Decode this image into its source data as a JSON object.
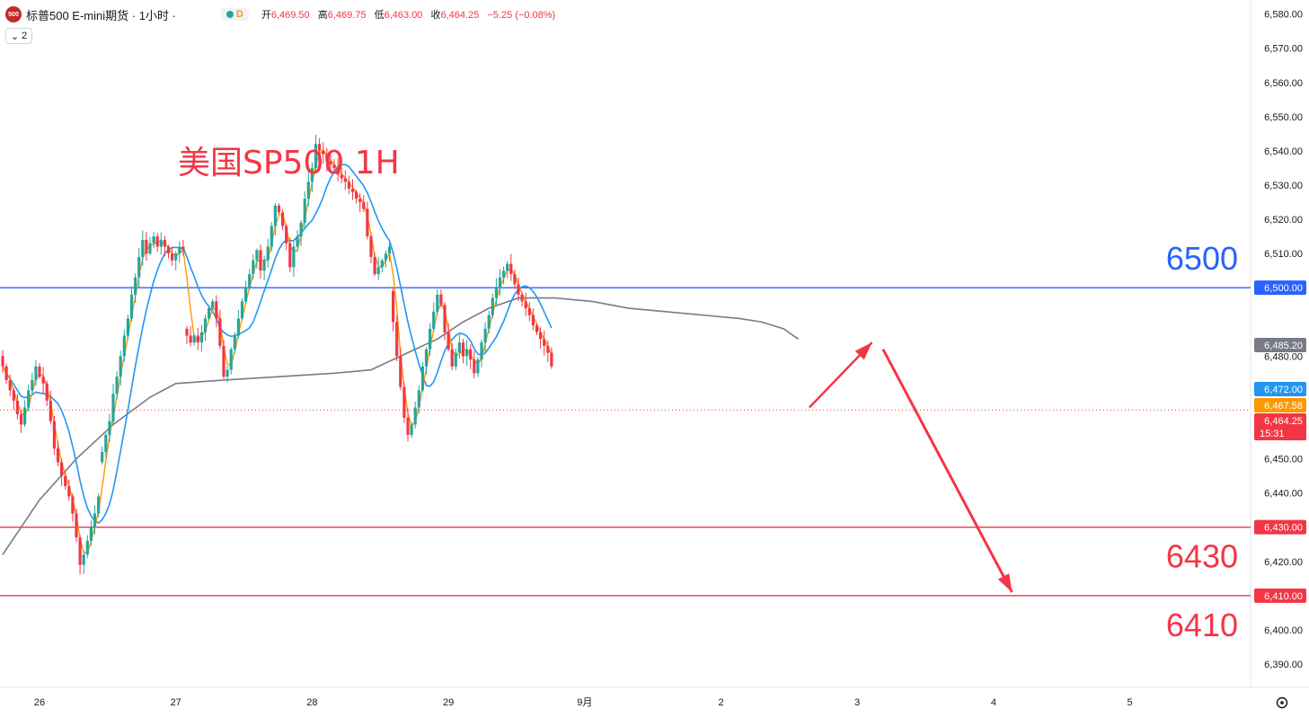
{
  "header": {
    "logo_text": "500",
    "symbol": "标普500 E-mini期货 · 1小时 ·",
    "data_mark": "D",
    "ohlc": [
      {
        "label": "开",
        "value": "6,469.50"
      },
      {
        "label": "高",
        "value": "6,469.75"
      },
      {
        "label": "低",
        "value": "6,463.00"
      },
      {
        "label": "收",
        "value": "6,464.25"
      }
    ],
    "change": "−5.25 (−0.08%)",
    "collapse_count": "2"
  },
  "colors": {
    "up": "#26a69a",
    "down": "#f23645",
    "ma_fast": "#ff9800",
    "ma_mid": "#2196f3",
    "ma_slow": "#787b86",
    "resistance_line": "#2962ff",
    "support_line": "#f23645",
    "annotation_red": "#f23645"
  },
  "chart_data": {
    "type": "candlestick",
    "title": "美国SP500 1H",
    "y_axis": {
      "range": [
        6385,
        6582
      ],
      "ticks": [
        "6,580.00",
        "6,570.00",
        "6,560.00",
        "6,550.00",
        "6,540.00",
        "6,530.00",
        "6,520.00",
        "6,510.00",
        "6,480.00",
        "6,450.00",
        "6,440.00",
        "6,420.00",
        "6,400.00",
        "6,390.00"
      ]
    },
    "x_axis": {
      "labels": [
        {
          "text": "26",
          "bar": 10
        },
        {
          "text": "27",
          "bar": 47
        },
        {
          "text": "28",
          "bar": 84
        },
        {
          "text": "29",
          "bar": 121
        },
        {
          "text": "9月",
          "bar": 158
        },
        {
          "text": "2",
          "bar": 195
        },
        {
          "text": "3",
          "bar": 232
        },
        {
          "text": "4",
          "bar": 269
        },
        {
          "text": "5",
          "bar": 306
        }
      ]
    },
    "levels": [
      {
        "value": 6500,
        "label": "6500",
        "axis_label": "6,500.00",
        "kind": "resistance"
      },
      {
        "value": 6430,
        "label": "6430",
        "axis_label": "6,430.00",
        "kind": "support"
      },
      {
        "value": 6410,
        "label": "6410",
        "axis_label": "6,410.00",
        "kind": "support"
      }
    ],
    "price_tags": [
      {
        "value": 6485.2,
        "text": "6,485.20",
        "color": "#787b86"
      },
      {
        "value": 6472.0,
        "text": "6,472.00",
        "color": "#2196f3"
      },
      {
        "value": 6467.58,
        "text": "6,467.58",
        "color": "#ff9800"
      },
      {
        "value": 6464.25,
        "text": "6,464.25",
        "sub": "15:31",
        "color": "#f23645"
      }
    ],
    "last_price": 6464.25,
    "ma_slow": [
      [
        0,
        6422
      ],
      [
        10,
        6438
      ],
      [
        20,
        6450
      ],
      [
        30,
        6460
      ],
      [
        40,
        6468
      ],
      [
        47,
        6472
      ],
      [
        60,
        6473
      ],
      [
        75,
        6474
      ],
      [
        90,
        6475
      ],
      [
        100,
        6476
      ],
      [
        110,
        6481
      ],
      [
        118,
        6485
      ],
      [
        125,
        6490
      ],
      [
        132,
        6494
      ],
      [
        140,
        6497
      ],
      [
        150,
        6497
      ],
      [
        160,
        6496
      ],
      [
        170,
        6494
      ],
      [
        180,
        6493
      ],
      [
        190,
        6492
      ],
      [
        200,
        6491
      ],
      [
        206,
        6490
      ],
      [
        212,
        6488
      ],
      [
        216,
        6485
      ]
    ],
    "forecast_path": [
      {
        "bar": 219,
        "price": 6465
      },
      {
        "bar": 236,
        "price": 6484
      },
      {
        "bar": 239,
        "price": 6482
      },
      {
        "bar": 274,
        "price": 6411
      }
    ],
    "segments": [
      {
        "start": 6480,
        "moves": [
          -3,
          -4,
          -3,
          -3,
          -4,
          -3,
          5,
          5,
          3,
          4,
          -3,
          -2,
          -5,
          -6,
          -8,
          -4,
          -4,
          -3,
          -3,
          -5,
          -7,
          -8,
          3,
          4,
          4,
          4,
          5
        ]
      },
      {
        "start": 6449,
        "moves": [
          3,
          5,
          4,
          8,
          5,
          6,
          6,
          5,
          7,
          5,
          6,
          5,
          -4,
          3,
          2,
          -3,
          2,
          -2,
          -2,
          -2,
          2,
          2,
          -1
        ]
      },
      {
        "start": 6488,
        "moves": [
          -2,
          -2,
          2,
          -2,
          3,
          4,
          3,
          2,
          -5,
          -8,
          -9,
          2,
          6,
          4,
          5,
          5,
          4,
          4,
          4,
          3,
          -6,
          3,
          4,
          6,
          6,
          -2,
          -4,
          -5,
          -7,
          6,
          3,
          4,
          7,
          5,
          4,
          7,
          -2,
          -1,
          -2,
          -1,
          -1,
          -2,
          -1,
          -1,
          -2,
          -1,
          -2,
          -1,
          -2,
          -8,
          -6,
          -5,
          2,
          2,
          2,
          2
        ]
      },
      {
        "start": 6499,
        "moves": [
          -9,
          -10,
          -9,
          -9,
          -5,
          3,
          5,
          5,
          7,
          5,
          6,
          5,
          5,
          -3,
          -8,
          -5,
          -5,
          4,
          3,
          -4,
          2,
          -3,
          -4,
          4,
          5,
          4,
          4,
          5,
          3,
          3,
          2,
          2,
          -3,
          -3,
          -3,
          -2,
          -2,
          -2,
          -3,
          -2,
          -2,
          -2,
          -2,
          -4
        ]
      }
    ]
  },
  "axis_bottom": {
    "settings_icon": "gear-icon"
  }
}
